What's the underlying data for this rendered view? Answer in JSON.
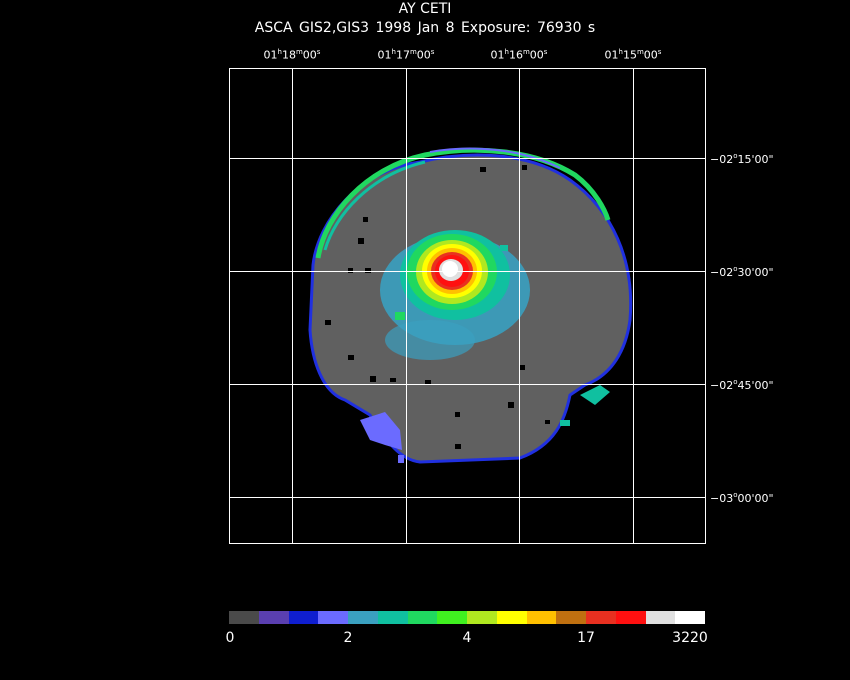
{
  "header": {
    "object": "AY CETI",
    "info": "ASCA GIS2,GIS3    1998 Jan  8    Exposure: 76930 s"
  },
  "ra_labels": [
    {
      "h": "01",
      "m": "18",
      "s": "00"
    },
    {
      "h": "01",
      "m": "17",
      "s": "00"
    },
    {
      "h": "01",
      "m": "16",
      "s": "00"
    },
    {
      "h": "01",
      "m": "15",
      "s": "00"
    }
  ],
  "dec_labels": [
    {
      "d": "−02",
      "m": "15",
      "s": "00"
    },
    {
      "d": "−02",
      "m": "30",
      "s": "00"
    },
    {
      "d": "−02",
      "m": "45",
      "s": "00"
    },
    {
      "d": "−03",
      "m": "00",
      "s": "00"
    }
  ],
  "colorbar": {
    "colors": [
      "#4a4a4a",
      "#5a3fb0",
      "#0f1ed0",
      "#6b6bff",
      "#3aa0c0",
      "#10c0a0",
      "#20d860",
      "#40f020",
      "#b0e820",
      "#ffff00",
      "#ffc000",
      "#c07010",
      "#e83020",
      "#ff1010",
      "#e0e0e0",
      "#ffffff"
    ],
    "ticks": [
      "0",
      "2",
      "4",
      "17",
      "3220"
    ]
  },
  "colors": {
    "background": "#000000",
    "field": "#606060",
    "edge": "#2030e0",
    "grid": "#ffffff"
  }
}
